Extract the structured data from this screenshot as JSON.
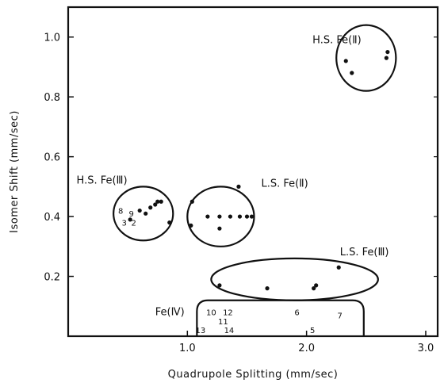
{
  "chart_data": {
    "type": "scatter",
    "xlabel": "Quadrupole Splitting (mm/sec)",
    "ylabel": "Isomer Shift (mm/sec)",
    "xlim": [
      0.0,
      3.1
    ],
    "ylim": [
      0.0,
      1.1
    ],
    "x_ticks": [
      1.0,
      2.0,
      3.0
    ],
    "x_tick_labels": [
      "1.0",
      "2.0",
      "3.0"
    ],
    "y_ticks": [
      0.2,
      0.4,
      0.6,
      0.8,
      1.0
    ],
    "y_tick_labels": [
      "0.2",
      "0.4",
      "0.6",
      "0.8",
      "1.0"
    ],
    "grid": false,
    "groups": [
      {
        "name": "H.S. Fe(Ⅱ)",
        "ellipse": {
          "cx": 2.5,
          "cy": 0.93,
          "rx": 0.25,
          "ry": 0.11
        },
        "label_anchor": {
          "x": 2.05,
          "y": 0.98
        },
        "points": [
          {
            "x": 2.33,
            "y": 0.92
          },
          {
            "x": 2.38,
            "y": 0.88
          },
          {
            "x": 2.68,
            "y": 0.95
          },
          {
            "x": 2.67,
            "y": 0.93
          }
        ]
      },
      {
        "name": "L.S. Fe(Ⅱ)",
        "ellipse": {
          "cx": 1.28,
          "cy": 0.4,
          "rx": 0.28,
          "ry": 0.1
        },
        "label_anchor": {
          "x": 1.62,
          "y": 0.5
        },
        "points": [
          {
            "x": 1.04,
            "y": 0.45
          },
          {
            "x": 1.17,
            "y": 0.4
          },
          {
            "x": 1.27,
            "y": 0.4
          },
          {
            "x": 1.36,
            "y": 0.4
          },
          {
            "x": 1.44,
            "y": 0.4
          },
          {
            "x": 1.5,
            "y": 0.4
          },
          {
            "x": 1.54,
            "y": 0.4
          },
          {
            "x": 1.03,
            "y": 0.37
          },
          {
            "x": 1.27,
            "y": 0.36
          },
          {
            "x": 1.43,
            "y": 0.5
          }
        ]
      },
      {
        "name": "H.S. Fe(Ⅲ)",
        "ellipse": {
          "cx": 0.63,
          "cy": 0.41,
          "rx": 0.25,
          "ry": 0.09
        },
        "label_anchor": {
          "x": 0.07,
          "y": 0.51
        },
        "points": [
          {
            "x": 0.6,
            "y": 0.42
          },
          {
            "x": 0.65,
            "y": 0.41
          },
          {
            "x": 0.69,
            "y": 0.43
          },
          {
            "x": 0.73,
            "y": 0.44
          },
          {
            "x": 0.75,
            "y": 0.45
          },
          {
            "x": 0.78,
            "y": 0.45
          },
          {
            "x": 0.85,
            "y": 0.38
          },
          {
            "x": 0.52,
            "y": 0.39
          }
        ],
        "numbered_labels": [
          {
            "text": "8",
            "x": 0.44,
            "y": 0.41
          },
          {
            "text": "9",
            "x": 0.53,
            "y": 0.4
          },
          {
            "text": "3",
            "x": 0.47,
            "y": 0.37
          },
          {
            "text": "2",
            "x": 0.55,
            "y": 0.37
          }
        ]
      },
      {
        "name": "L.S. Fe(Ⅲ)",
        "ellipse": {
          "cx": 1.9,
          "cy": 0.19,
          "rx": 0.7,
          "ry": 0.07
        },
        "label_anchor": {
          "x": 2.28,
          "y": 0.27
        },
        "points": [
          {
            "x": 1.27,
            "y": 0.17
          },
          {
            "x": 1.67,
            "y": 0.16
          },
          {
            "x": 2.06,
            "y": 0.16
          },
          {
            "x": 2.08,
            "y": 0.17
          },
          {
            "x": 2.27,
            "y": 0.23
          }
        ]
      },
      {
        "name": "Fe(Ⅳ)",
        "label_anchor": {
          "x": 0.73,
          "y": 0.07
        },
        "region": {
          "x0": 1.08,
          "x1": 2.48,
          "y0": 0.0,
          "y1": 0.12
        },
        "numbered_labels": [
          {
            "text": "10",
            "x": 1.2,
            "y": 0.07
          },
          {
            "text": "12",
            "x": 1.34,
            "y": 0.07
          },
          {
            "text": "6",
            "x": 1.92,
            "y": 0.07
          },
          {
            "text": "7",
            "x": 2.28,
            "y": 0.06
          },
          {
            "text": "11",
            "x": 1.3,
            "y": 0.04
          },
          {
            "text": "13",
            "x": 1.11,
            "y": 0.01
          },
          {
            "text": "14",
            "x": 1.35,
            "y": 0.01
          },
          {
            "text": "5",
            "x": 2.05,
            "y": 0.01
          }
        ]
      }
    ]
  }
}
